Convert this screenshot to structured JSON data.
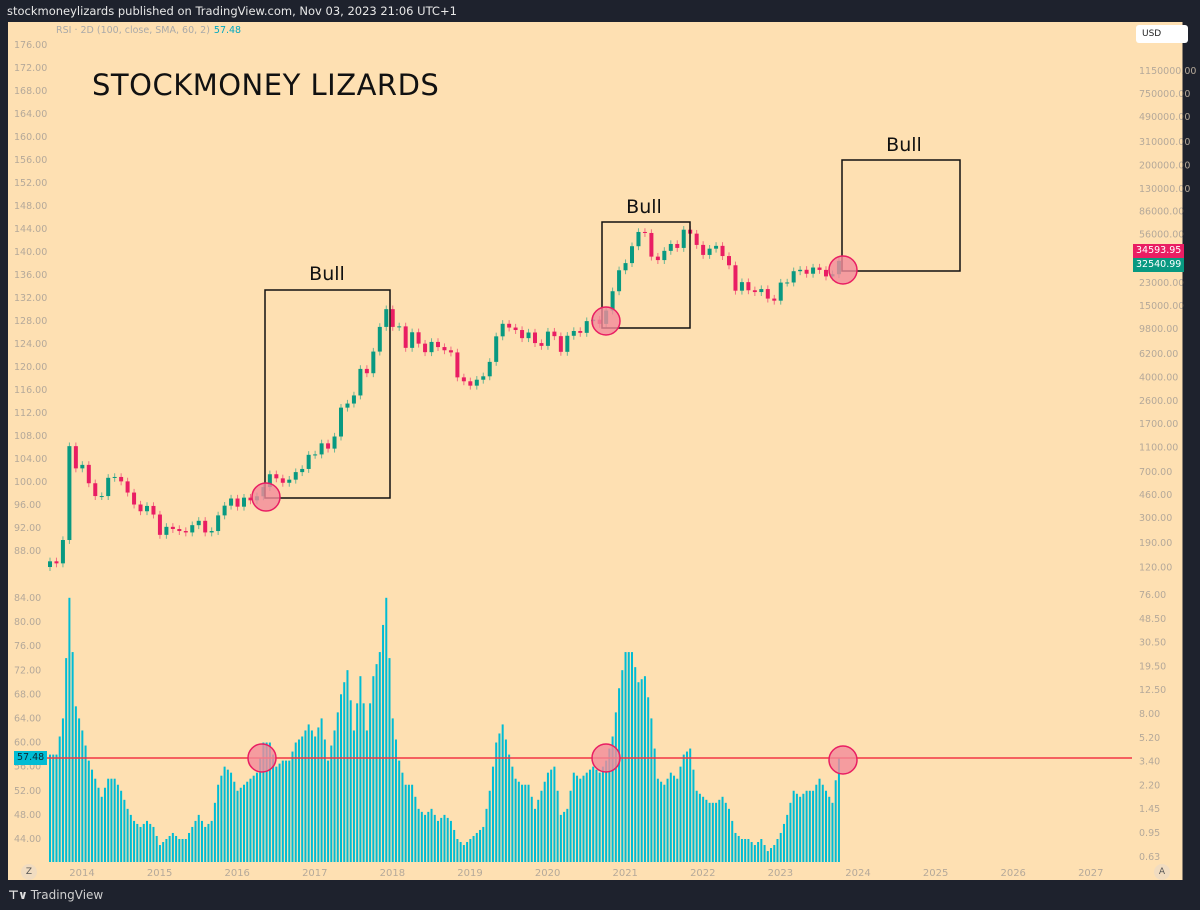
{
  "header": {
    "publish_line": "stockmoneylizards published on TradingView.com, Nov 03, 2023 21:06 UTC+1"
  },
  "indicator": {
    "label": "RSI · 2D (100, close, SMA, 60, 2)",
    "value": "57.48"
  },
  "currency_button": "USD",
  "watermark_title": "STOCKMONEY LIZARDS",
  "annotations": {
    "bull_labels": [
      "Bull",
      "Bull",
      "Bull"
    ]
  },
  "footer": {
    "brand": "TradingView",
    "z_button": "Z",
    "a_button": "A"
  },
  "colors": {
    "background": "#fee0b2",
    "up": "#089981",
    "down": "#e91e63",
    "histogram": "#00bcd4",
    "level_line": "#f23645",
    "circle_fill": "#f28b9a"
  },
  "chart_data": [
    {
      "type": "candlestick",
      "title": "",
      "scale": "log",
      "x_start": "2013-08",
      "x_step": "month",
      "x_ticks": [
        "2014",
        "2015",
        "2016",
        "2017",
        "2018",
        "2019",
        "2020",
        "2021",
        "2022",
        "2023",
        "2024",
        "2025",
        "2026",
        "2027"
      ],
      "right_axis_ticks": [
        "1150000.00",
        "750000.00",
        "490000.00",
        "310000.00",
        "200000.00",
        "130000.00",
        "86000.00",
        "56000.00",
        "23000.00",
        "15000.00",
        "9800.00",
        "6200.00",
        "4000.00",
        "2600.00",
        "1700.00",
        "1100.00",
        "700.00",
        "460.00",
        "300.00",
        "190.00",
        "120.00"
      ],
      "left_axis_ticks": [
        "176.00",
        "172.00",
        "168.00",
        "164.00",
        "160.00",
        "156.00",
        "152.00",
        "148.00",
        "144.00",
        "140.00",
        "136.00",
        "132.00",
        "128.00",
        "124.00",
        "120.00",
        "116.00",
        "112.00",
        "108.00",
        "104.00",
        "100.00",
        "96.00",
        "92.00",
        "88.00"
      ],
      "price_tags": [
        {
          "label": "34593.95",
          "color": "#e91e63"
        },
        {
          "label": "32540.99",
          "color": "#089981"
        }
      ],
      "closes": [
        135,
        130,
        200,
        1130,
        750,
        800,
        570,
        450,
        450,
        630,
        640,
        590,
        480,
        385,
        340,
        375,
        320,
        220,
        255,
        245,
        236,
        230,
        263,
        285,
        230,
        236,
        315,
        377,
        430,
        370,
        437,
        416,
        448,
        531,
        673,
        624,
        575,
        609,
        700,
        742,
        963,
        970,
        1190,
        1080,
        1350,
        2300,
        2480,
        2880,
        4700,
        4340,
        6470,
        10200,
        14150,
        10200,
        10300,
        6930,
        9240,
        7490,
        6400,
        7730,
        7030,
        6630,
        6370,
        4020,
        3740,
        3450,
        3850,
        4100,
        5350,
        8570,
        10800,
        10080,
        9630,
        8290,
        9200,
        7570,
        7190,
        9350,
        8600,
        6440,
        8660,
        9460,
        9140,
        11350,
        11660,
        10780,
        13800,
        19700,
        29000,
        33100,
        45200,
        58800,
        57700,
        37300,
        35000,
        41500,
        47100,
        43800,
        61300,
        57000,
        46300,
        38500,
        43200,
        45500,
        37700,
        31800,
        19900,
        23300,
        20050,
        19400,
        20500,
        17200,
        16550,
        23100,
        23150,
        28500,
        29250,
        27200,
        30500,
        29200,
        25900,
        26970,
        34500
      ]
    },
    {
      "type": "bar",
      "title": "",
      "x_start": "2013-08",
      "x_step": "month",
      "left_axis_ticks": [
        "84.00",
        "80.00",
        "76.00",
        "72.00",
        "68.00",
        "64.00",
        "60.00",
        "56.00",
        "52.00",
        "48.00",
        "44.00"
      ],
      "right_axis_ticks": [
        "76.00",
        "48.50",
        "30.50",
        "19.50",
        "12.50",
        "8.00",
        "5.20",
        "3.40",
        "2.20",
        "1.45",
        "0.95",
        "0.63"
      ],
      "level": 57.48,
      "values": [
        58,
        58,
        64,
        84,
        66,
        62,
        57,
        54,
        51,
        54,
        54,
        52,
        49,
        47,
        46,
        47,
        46,
        43,
        44,
        45,
        44,
        44,
        46,
        48,
        46,
        47,
        53,
        56,
        55,
        52,
        53,
        54,
        55,
        60,
        60,
        56,
        57,
        57,
        60,
        61,
        63,
        61,
        64,
        57,
        62,
        68,
        72,
        62,
        71,
        62,
        71,
        75,
        84,
        64,
        57,
        53,
        53,
        49,
        48,
        49,
        47,
        48,
        47,
        44,
        43,
        44,
        45,
        46,
        52,
        60,
        63,
        58,
        54,
        53,
        53,
        49,
        52,
        55,
        56,
        48,
        49,
        55,
        54,
        55,
        56,
        55,
        57,
        61,
        69,
        75,
        75,
        70,
        71,
        64,
        54,
        53,
        55,
        54,
        58,
        59,
        52,
        51,
        50,
        50,
        51,
        49,
        45,
        44,
        44,
        43,
        44,
        42,
        43,
        45,
        48,
        52,
        51,
        52,
        52,
        54,
        52,
        50,
        57.48
      ]
    }
  ]
}
